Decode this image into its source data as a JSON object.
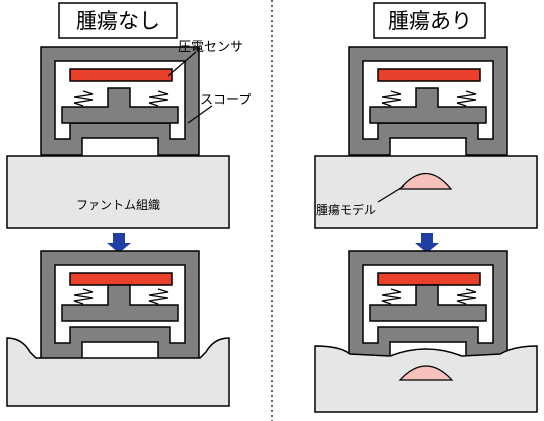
{
  "left_panel": {
    "title": "腫瘍なし",
    "sensor_label": "圧電センサ",
    "scope_label": "スコープ",
    "tissue_label": "ファントム組織"
  },
  "right_panel": {
    "title": "腫瘍あり",
    "tumor_label": "腫瘍モデル"
  },
  "colors": {
    "scope_body": "#808080",
    "sensor": "#e8402a",
    "tissue": "#e6e6e6",
    "tumor": "#f6c1bd",
    "arrow": "#1f3fa3",
    "outline": "#000000"
  }
}
